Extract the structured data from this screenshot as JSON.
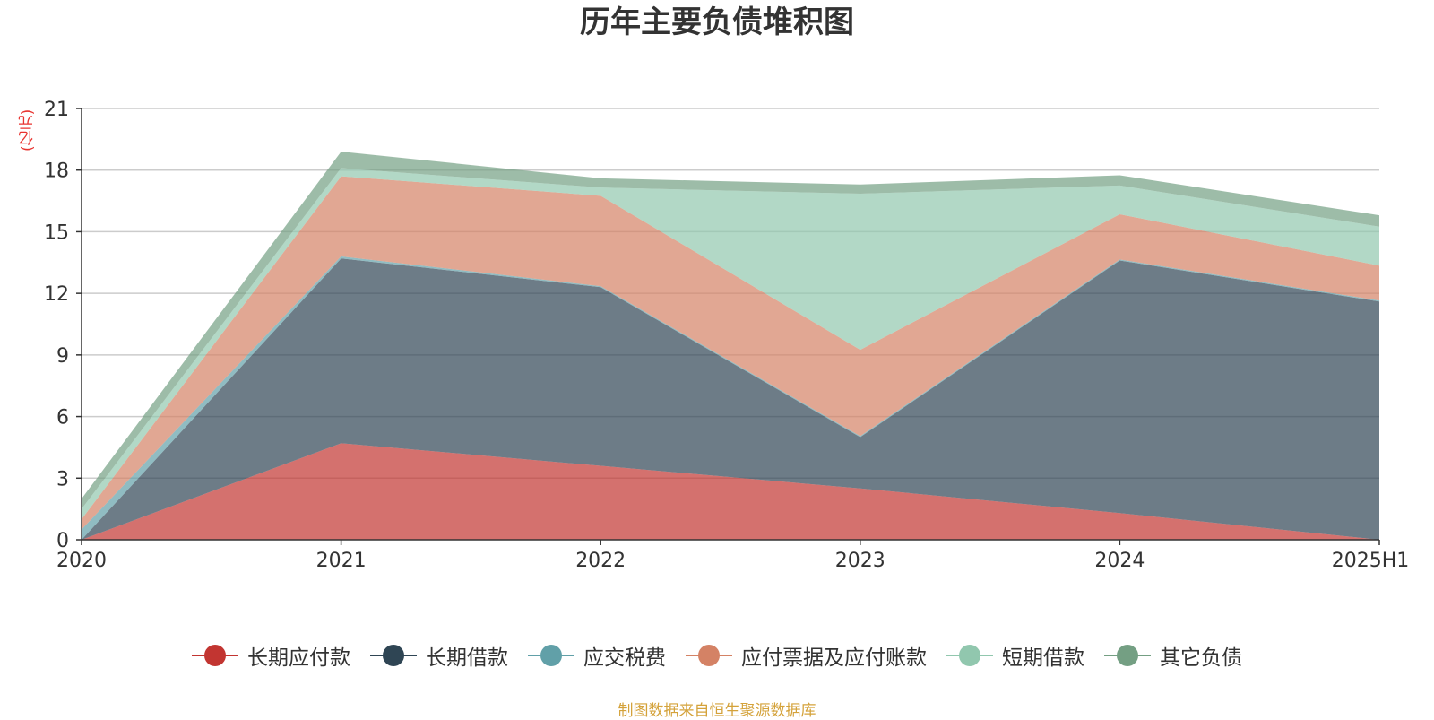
{
  "chart_data": {
    "type": "area",
    "stacked": true,
    "title": "历年主要负债堆积图",
    "ylabel": "(亿元)",
    "xlabel": "",
    "categories": [
      "2020",
      "2021",
      "2022",
      "2023",
      "2024",
      "2025H1"
    ],
    "ylim": [
      0,
      21
    ],
    "yticks": [
      0,
      3,
      6,
      9,
      12,
      15,
      18,
      21
    ],
    "grid": true,
    "legend_position": "bottom",
    "series": [
      {
        "name": "长期应付款",
        "color": "#c23531",
        "values": [
          0,
          4.7,
          3.6,
          2.5,
          1.3,
          0
        ]
      },
      {
        "name": "长期借款",
        "color": "#2f4554",
        "values": [
          0,
          9.0,
          8.7,
          2.5,
          12.3,
          11.6
        ]
      },
      {
        "name": "应交税费",
        "color": "#61a0a8",
        "values": [
          0.5,
          0.1,
          0.05,
          0.05,
          0.05,
          0.05
        ]
      },
      {
        "name": "应付票据及应付账款",
        "color": "#d48265",
        "values": [
          0.5,
          3.9,
          4.4,
          4.2,
          2.2,
          1.7
        ]
      },
      {
        "name": "短期借款",
        "color": "#91c7ae",
        "values": [
          0.5,
          0.4,
          0.4,
          7.6,
          1.4,
          1.9
        ]
      },
      {
        "name": "其它负债",
        "color": "#749f83",
        "values": [
          0.5,
          0.8,
          0.45,
          0.45,
          0.5,
          0.55
        ]
      }
    ]
  },
  "source": "制图数据来自恒生聚源数据库"
}
